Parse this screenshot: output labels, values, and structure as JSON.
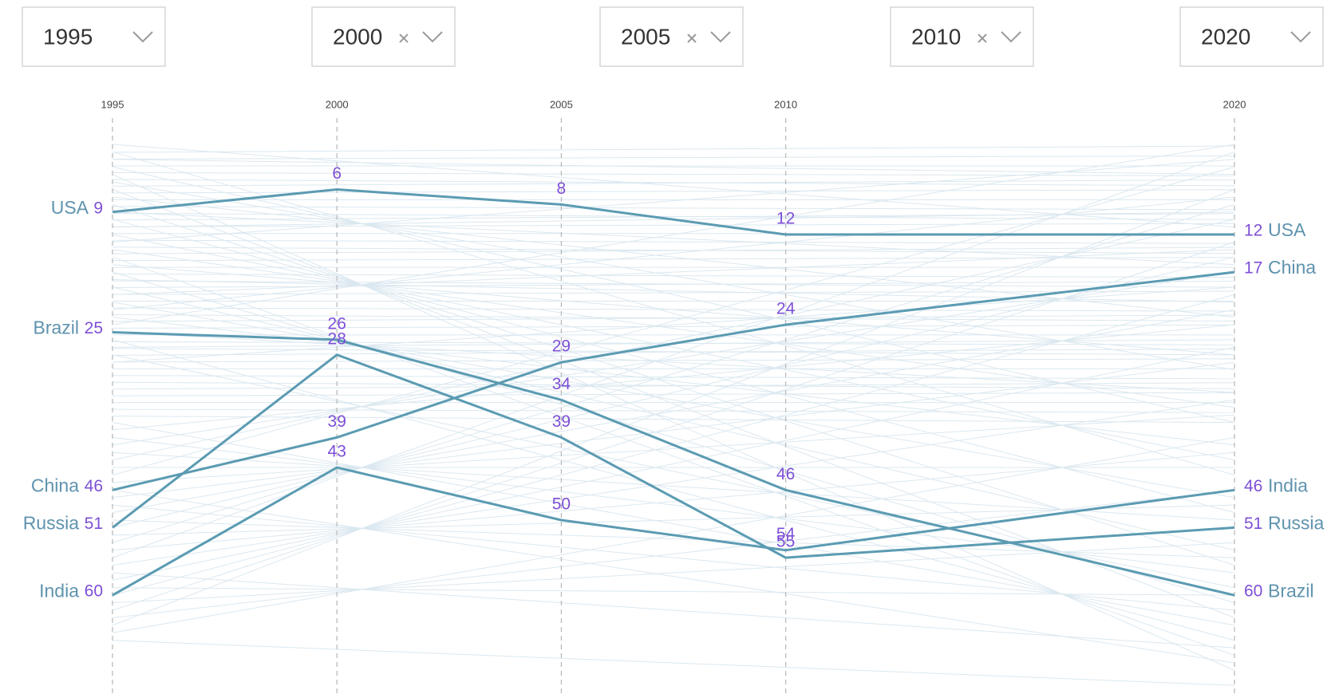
{
  "filters": [
    {
      "label": "1995",
      "clearable": false
    },
    {
      "label": "2000",
      "clearable": true
    },
    {
      "label": "2005",
      "clearable": true
    },
    {
      "label": "2010",
      "clearable": true
    },
    {
      "label": "2020",
      "clearable": false
    }
  ],
  "chart_data": {
    "type": "bump",
    "x": [
      1995,
      2000,
      2005,
      2010,
      2020
    ],
    "xlim": [
      1995,
      2020
    ],
    "xticks": [
      1995,
      2000,
      2005,
      2010,
      2020
    ],
    "ylim": [
      0,
      73
    ],
    "inverted": true,
    "series": [
      {
        "name": "USA",
        "color": "#5b9bb2",
        "values": [
          9,
          6,
          8,
          12,
          12
        ]
      },
      {
        "name": "Brazil",
        "color": "#5b9bb2",
        "values": [
          25,
          26,
          34,
          46,
          60
        ]
      },
      {
        "name": "China",
        "color": "#5b9bb2",
        "values": [
          46,
          39,
          29,
          24,
          17
        ]
      },
      {
        "name": "Russia",
        "color": "#5b9bb2",
        "values": [
          51,
          28,
          39,
          55,
          51
        ]
      },
      {
        "name": "India",
        "color": "#5b9bb2",
        "values": [
          60,
          43,
          50,
          54,
          46
        ]
      }
    ]
  }
}
